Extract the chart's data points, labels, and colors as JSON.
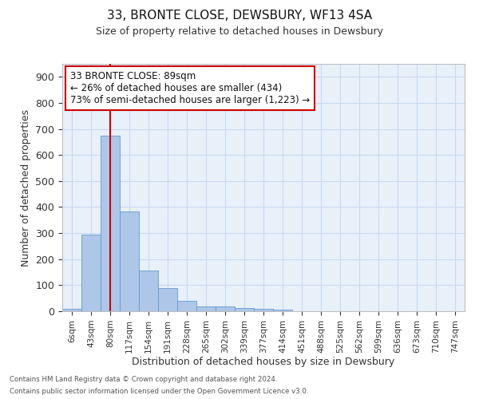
{
  "title1": "33, BRONTE CLOSE, DEWSBURY, WF13 4SA",
  "title2": "Size of property relative to detached houses in Dewsbury",
  "xlabel": "Distribution of detached houses by size in Dewsbury",
  "ylabel": "Number of detached properties",
  "categories": [
    "6sqm",
    "43sqm",
    "80sqm",
    "117sqm",
    "154sqm",
    "191sqm",
    "228sqm",
    "265sqm",
    "302sqm",
    "339sqm",
    "377sqm",
    "414sqm",
    "451sqm",
    "488sqm",
    "525sqm",
    "562sqm",
    "599sqm",
    "636sqm",
    "673sqm",
    "710sqm",
    "747sqm"
  ],
  "values": [
    10,
    295,
    675,
    383,
    155,
    90,
    40,
    18,
    17,
    12,
    10,
    5,
    0,
    0,
    0,
    0,
    0,
    0,
    0,
    0,
    0
  ],
  "bar_color": "#aec6e8",
  "bar_edge_color": "#6699cc",
  "grid_color": "#c8daf0",
  "bg_color": "#e8f0fa",
  "vline_x": 2,
  "vline_color": "#cc0000",
  "annotation_text": "33 BRONTE CLOSE: 89sqm\n← 26% of detached houses are smaller (434)\n73% of semi-detached houses are larger (1,223) →",
  "annotation_box_color": "#ffffff",
  "annotation_box_edge": "#cc0000",
  "footer1": "Contains HM Land Registry data © Crown copyright and database right 2024.",
  "footer2": "Contains public sector information licensed under the Open Government Licence v3.0.",
  "ylim": [
    0,
    950
  ],
  "yticks": [
    0,
    100,
    200,
    300,
    400,
    500,
    600,
    700,
    800,
    900
  ]
}
